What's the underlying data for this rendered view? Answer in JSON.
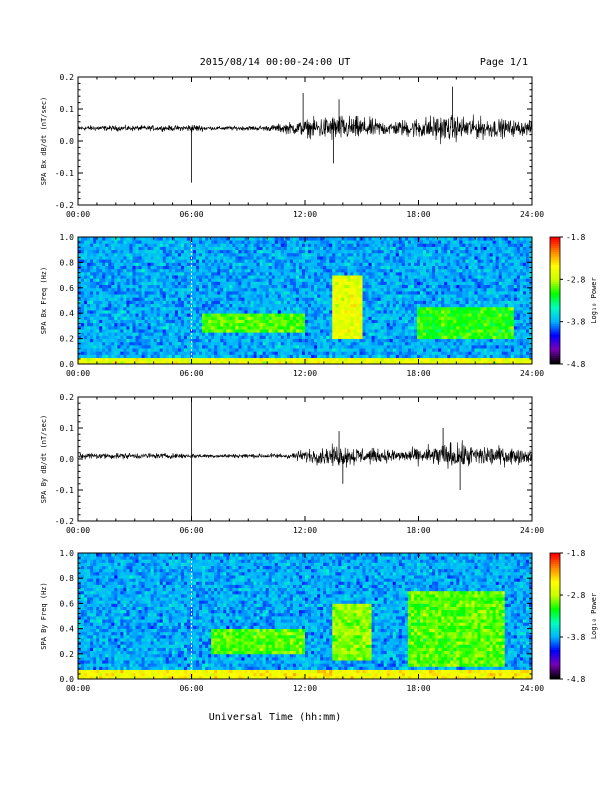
{
  "header": {
    "title": "2015/08/14  00:00-24:00 UT",
    "page": "Page 1/1"
  },
  "xlabel": "Universal Time (hh:mm)",
  "colorbar": {
    "label": "Log₁₀ Power",
    "ticks": [
      "-1.8",
      "-2.8",
      "-3.8",
      "-4.8"
    ]
  },
  "chart_data": [
    {
      "type": "line",
      "ylabel": "SPA Bx dB/dt (nT/sec)",
      "x_ticks": [
        "00:00",
        "06:00",
        "12:00",
        "18:00",
        "24:00"
      ],
      "y_ticks": [
        "0.2",
        "0.1",
        "0.0",
        "-0.1",
        "-0.2"
      ],
      "xlim": [
        0,
        24
      ],
      "ylim": [
        -0.2,
        0.2
      ],
      "series": [
        {
          "baseline": 0.04,
          "envelope": [
            {
              "x": 0,
              "amp": 0.012
            },
            {
              "x": 5.5,
              "amp": 0.012
            },
            {
              "x": 6.0,
              "amp": 0.02
            },
            {
              "x": 7.0,
              "amp": 0.008
            },
            {
              "x": 10.0,
              "amp": 0.012
            },
            {
              "x": 11.5,
              "amp": 0.03
            },
            {
              "x": 13.5,
              "amp": 0.06
            },
            {
              "x": 15.0,
              "amp": 0.05
            },
            {
              "x": 16.5,
              "amp": 0.03
            },
            {
              "x": 19.0,
              "amp": 0.06
            },
            {
              "x": 21.0,
              "amp": 0.05
            },
            {
              "x": 24.0,
              "amp": 0.03
            }
          ],
          "spikes": [
            {
              "x": 6.0,
              "y": -0.13
            },
            {
              "x": 11.9,
              "y": 0.15
            },
            {
              "x": 13.8,
              "y": 0.13
            },
            {
              "x": 19.8,
              "y": 0.17
            },
            {
              "x": 13.5,
              "y": -0.07
            }
          ]
        }
      ]
    },
    {
      "type": "heatmap",
      "ylabel": "SPA Bx Freq (Hz)",
      "x_ticks": [
        "00:00",
        "06:00",
        "12:00",
        "18:00",
        "24:00"
      ],
      "y_ticks": [
        "1.0",
        "0.8",
        "0.6",
        "0.4",
        "0.2",
        "0.0"
      ],
      "xlim": [
        0,
        24
      ],
      "ylim": [
        0,
        1.0
      ],
      "zlim": [
        -4.8,
        -1.8
      ],
      "colorscale": [
        "#000000",
        "#7a00b8",
        "#0000ff",
        "#00b4ff",
        "#00ffbe",
        "#00ff00",
        "#c8ff00",
        "#ffff00",
        "#ff8800",
        "#ff0000"
      ],
      "background_level": -3.8,
      "features": [
        {
          "t0": 0,
          "t1": 24,
          "f0": 0.0,
          "f1": 0.05,
          "level": -2.6
        },
        {
          "t0": 6.5,
          "t1": 12,
          "f0": 0.25,
          "f1": 0.4,
          "level": -3.0
        },
        {
          "t0": 13.5,
          "t1": 15,
          "f0": 0.2,
          "f1": 0.7,
          "level": -2.6
        },
        {
          "t0": 18,
          "t1": 23,
          "f0": 0.2,
          "f1": 0.45,
          "level": -3.1
        }
      ]
    },
    {
      "type": "line",
      "ylabel": "SPA By dB/dt (nT/sec)",
      "x_ticks": [
        "00:00",
        "06:00",
        "12:00",
        "18:00",
        "24:00"
      ],
      "y_ticks": [
        "0.2",
        "0.1",
        "0.0",
        "-0.1",
        "-0.2"
      ],
      "xlim": [
        0,
        24
      ],
      "ylim": [
        -0.2,
        0.2
      ],
      "series": [
        {
          "baseline": 0.01,
          "envelope": [
            {
              "x": 0,
              "amp": 0.015
            },
            {
              "x": 5.5,
              "amp": 0.012
            },
            {
              "x": 7.0,
              "amp": 0.008
            },
            {
              "x": 11.0,
              "amp": 0.012
            },
            {
              "x": 12.5,
              "amp": 0.035
            },
            {
              "x": 14.0,
              "amp": 0.05
            },
            {
              "x": 16.0,
              "amp": 0.03
            },
            {
              "x": 17.5,
              "amp": 0.03
            },
            {
              "x": 19.5,
              "amp": 0.06
            },
            {
              "x": 21.5,
              "amp": 0.05
            },
            {
              "x": 24.0,
              "amp": 0.03
            }
          ],
          "spikes": [
            {
              "x": 6.0,
              "y": 0.2
            },
            {
              "x": 6.0,
              "y": -0.2
            },
            {
              "x": 13.8,
              "y": 0.09
            },
            {
              "x": 19.3,
              "y": 0.1
            },
            {
              "x": 20.2,
              "y": -0.1
            },
            {
              "x": 14.0,
              "y": -0.08
            }
          ]
        }
      ]
    },
    {
      "type": "heatmap",
      "ylabel": "SPA By Freq (Hz)",
      "x_ticks": [
        "00:00",
        "06:00",
        "12:00",
        "18:00",
        "24:00"
      ],
      "y_ticks": [
        "1.0",
        "0.8",
        "0.6",
        "0.4",
        "0.2",
        "0.0"
      ],
      "xlim": [
        0,
        24
      ],
      "ylim": [
        0,
        1.0
      ],
      "zlim": [
        -4.8,
        -1.8
      ],
      "colorscale": [
        "#000000",
        "#7a00b8",
        "#0000ff",
        "#00b4ff",
        "#00ffbe",
        "#00ff00",
        "#c8ff00",
        "#ffff00",
        "#ff8800",
        "#ff0000"
      ],
      "background_level": -3.8,
      "features": [
        {
          "t0": 0,
          "t1": 24,
          "f0": 0.0,
          "f1": 0.08,
          "level": -2.5
        },
        {
          "t0": 7,
          "t1": 12,
          "f0": 0.2,
          "f1": 0.4,
          "level": -3.0
        },
        {
          "t0": 13.5,
          "t1": 15.5,
          "f0": 0.15,
          "f1": 0.6,
          "level": -2.9
        },
        {
          "t0": 17.5,
          "t1": 22.5,
          "f0": 0.1,
          "f1": 0.7,
          "level": -3.0
        }
      ]
    }
  ]
}
